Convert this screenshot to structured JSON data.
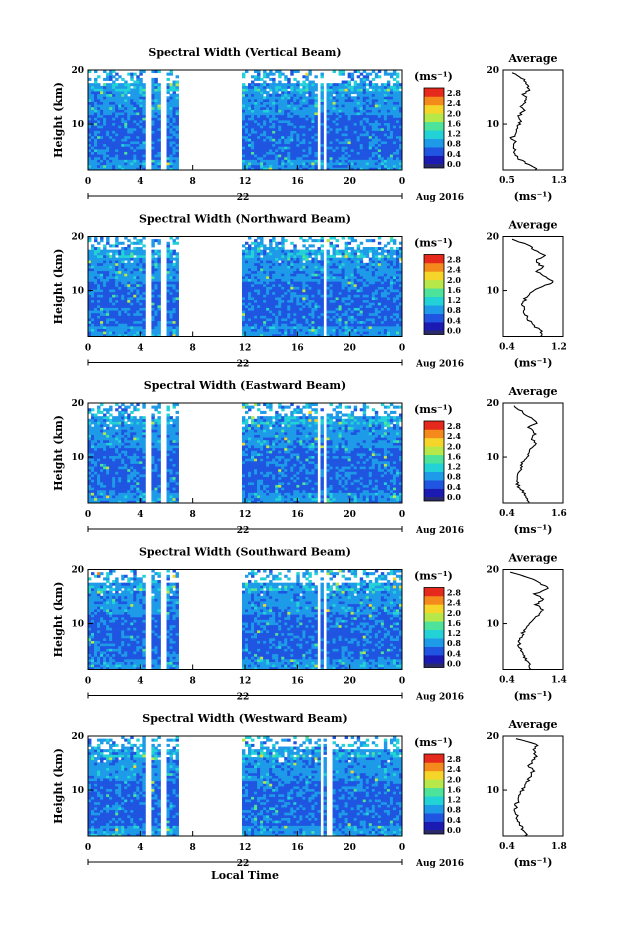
{
  "date_label": "Aug 2016",
  "day_label": "22",
  "xlabel": "Local Time",
  "ylabel": "Height (km)",
  "avg_title": "Average",
  "unit_label": "(ms⁻¹)",
  "colorbar_ticks": [
    "2.8",
    "2.4",
    "2.0",
    "1.6",
    "1.2",
    "0.8",
    "0.4",
    "0.0"
  ],
  "colors": {
    "colormap": [
      "#1b1bb4",
      "#1f55e0",
      "#1e9be8",
      "#23d2d6",
      "#4ee39a",
      "#b7e84a",
      "#f6d52a",
      "#f48a1c",
      "#e6291d"
    ],
    "background": "#ffffff"
  },
  "chart_data": [
    {
      "type": "heatmap",
      "title": "Spectral Width (Vertical Beam)",
      "x": {
        "ticks": [
          "0",
          "4",
          "8",
          "12",
          "16",
          "20",
          "0"
        ],
        "range": [
          0,
          24
        ],
        "unit": "hour"
      },
      "y": {
        "ticks": [
          "20",
          "10"
        ],
        "range": [
          1.5,
          20
        ]
      },
      "data_gaps_hours": [
        [
          4.3,
          4.8
        ],
        [
          5.5,
          5.9
        ],
        [
          7.0,
          11.8
        ],
        [
          17.5,
          17.8
        ],
        [
          18.0,
          18.3
        ]
      ],
      "colorbar": {
        "range": [
          0,
          3.0
        ]
      },
      "average": {
        "title": "Average",
        "x_ticks": [
          "0.5",
          "1.3"
        ],
        "xlim": [
          0.5,
          1.3
        ],
        "ylim": [
          1.5,
          20
        ],
        "y_ticks": [
          "20",
          "10"
        ],
        "profile": [
          [
            1.5,
            0.95
          ],
          [
            2.5,
            0.85
          ],
          [
            3.5,
            0.72
          ],
          [
            4.5,
            0.66
          ],
          [
            5.5,
            0.64
          ],
          [
            6.5,
            0.66
          ],
          [
            7.5,
            0.62
          ],
          [
            8.5,
            0.68
          ],
          [
            9.5,
            0.7
          ],
          [
            10.5,
            0.74
          ],
          [
            11.5,
            0.72
          ],
          [
            12.5,
            0.78
          ],
          [
            13.5,
            0.74
          ],
          [
            14.5,
            0.82
          ],
          [
            15.5,
            0.78
          ],
          [
            16.5,
            0.86
          ],
          [
            17.5,
            0.8
          ],
          [
            18.5,
            0.76
          ],
          [
            19.5,
            0.62
          ]
        ]
      }
    },
    {
      "type": "heatmap",
      "title": "Spectral Width (Northward Beam)",
      "x": {
        "ticks": [
          "0",
          "4",
          "8",
          "12",
          "16",
          "20",
          "0"
        ],
        "range": [
          0,
          24
        ],
        "unit": "hour"
      },
      "y": {
        "ticks": [
          "20",
          "10"
        ],
        "range": [
          1.5,
          20
        ]
      },
      "data_gaps_hours": [
        [
          4.3,
          4.8
        ],
        [
          5.5,
          5.9
        ],
        [
          7.0,
          11.8
        ],
        [
          18.0,
          18.3
        ]
      ],
      "colorbar": {
        "range": [
          0,
          3.0
        ]
      },
      "average": {
        "title": "Average",
        "x_ticks": [
          "0.4",
          "1.2"
        ],
        "xlim": [
          0.4,
          1.2
        ],
        "ylim": [
          1.5,
          20
        ],
        "y_ticks": [
          "20",
          "10"
        ],
        "profile": [
          [
            1.5,
            0.92
          ],
          [
            2.5,
            0.9
          ],
          [
            3.5,
            0.82
          ],
          [
            4.5,
            0.74
          ],
          [
            5.5,
            0.7
          ],
          [
            6.5,
            0.68
          ],
          [
            7.5,
            0.66
          ],
          [
            8.5,
            0.7
          ],
          [
            9.5,
            0.76
          ],
          [
            10.5,
            0.86
          ],
          [
            11.5,
            1.08
          ],
          [
            12.5,
            0.98
          ],
          [
            13.5,
            0.86
          ],
          [
            14.5,
            0.92
          ],
          [
            15.5,
            0.84
          ],
          [
            16.5,
            0.96
          ],
          [
            17.5,
            0.82
          ],
          [
            18.5,
            0.74
          ],
          [
            19.5,
            0.52
          ]
        ]
      }
    },
    {
      "type": "heatmap",
      "title": "Spectral Width (Eastward Beam)",
      "x": {
        "ticks": [
          "0",
          "4",
          "8",
          "12",
          "16",
          "20",
          "0"
        ],
        "range": [
          0,
          24
        ],
        "unit": "hour"
      },
      "y": {
        "ticks": [
          "20",
          "10"
        ],
        "range": [
          1.5,
          20
        ]
      },
      "data_gaps_hours": [
        [
          4.3,
          4.8
        ],
        [
          5.5,
          5.9
        ],
        [
          7.0,
          11.8
        ],
        [
          17.5,
          17.8
        ],
        [
          18.0,
          18.3
        ]
      ],
      "colorbar": {
        "range": [
          0,
          3.0
        ]
      },
      "average": {
        "title": "Average",
        "x_ticks": [
          "0.4",
          "1.6"
        ],
        "xlim": [
          0.4,
          1.6
        ],
        "ylim": [
          1.5,
          20
        ],
        "y_ticks": [
          "20",
          "10"
        ],
        "profile": [
          [
            1.5,
            0.92
          ],
          [
            2.5,
            0.86
          ],
          [
            3.5,
            0.8
          ],
          [
            4.5,
            0.72
          ],
          [
            5.5,
            0.68
          ],
          [
            6.5,
            0.66
          ],
          [
            7.5,
            0.74
          ],
          [
            8.5,
            0.78
          ],
          [
            9.5,
            0.82
          ],
          [
            10.5,
            0.9
          ],
          [
            11.5,
            0.96
          ],
          [
            12.5,
            1.08
          ],
          [
            13.5,
            0.98
          ],
          [
            14.5,
            1.04
          ],
          [
            15.5,
            0.9
          ],
          [
            16.5,
            1.1
          ],
          [
            17.5,
            0.92
          ],
          [
            18.5,
            0.78
          ],
          [
            19.5,
            0.62
          ]
        ]
      }
    },
    {
      "type": "heatmap",
      "title": "Spectral Width (Southward Beam)",
      "x": {
        "ticks": [
          "0",
          "4",
          "8",
          "12",
          "16",
          "20",
          "0"
        ],
        "range": [
          0,
          24
        ],
        "unit": "hour"
      },
      "y": {
        "ticks": [
          "20",
          "10"
        ],
        "range": [
          1.5,
          20
        ]
      },
      "data_gaps_hours": [
        [
          4.3,
          4.8
        ],
        [
          5.5,
          5.9
        ],
        [
          7.0,
          11.8
        ],
        [
          17.5,
          17.8
        ],
        [
          18.0,
          18.3
        ]
      ],
      "colorbar": {
        "range": [
          0,
          3.0
        ]
      },
      "average": {
        "title": "Average",
        "x_ticks": [
          "0.4",
          "1.4"
        ],
        "xlim": [
          0.4,
          1.4
        ],
        "ylim": [
          1.5,
          20
        ],
        "y_ticks": [
          "20",
          "10"
        ],
        "profile": [
          [
            1.5,
            0.88
          ],
          [
            2.5,
            0.84
          ],
          [
            3.5,
            0.78
          ],
          [
            4.5,
            0.72
          ],
          [
            5.5,
            0.68
          ],
          [
            6.5,
            0.66
          ],
          [
            7.5,
            0.7
          ],
          [
            8.5,
            0.74
          ],
          [
            9.5,
            0.82
          ],
          [
            10.5,
            0.9
          ],
          [
            11.5,
            0.98
          ],
          [
            12.5,
            1.06
          ],
          [
            13.5,
            0.96
          ],
          [
            14.5,
            1.08
          ],
          [
            15.5,
            0.94
          ],
          [
            16.5,
            1.18
          ],
          [
            17.5,
            1.0
          ],
          [
            18.5,
            0.84
          ],
          [
            19.5,
            0.52
          ]
        ]
      }
    },
    {
      "type": "heatmap",
      "title": "Spectral Width (Westward Beam)",
      "x": {
        "ticks": [
          "0",
          "4",
          "8",
          "12",
          "16",
          "20",
          "0"
        ],
        "range": [
          0,
          24
        ],
        "unit": "hour"
      },
      "y": {
        "ticks": [
          "20",
          "10"
        ],
        "range": [
          1.5,
          20
        ]
      },
      "data_gaps_hours": [
        [
          4.3,
          4.8
        ],
        [
          5.5,
          5.9
        ],
        [
          7.0,
          11.8
        ],
        [
          17.8,
          18.1
        ],
        [
          18.3,
          18.6
        ]
      ],
      "colorbar": {
        "range": [
          0,
          3.0
        ]
      },
      "average": {
        "title": "Average",
        "x_ticks": [
          "0.4",
          "1.8"
        ],
        "xlim": [
          0.4,
          1.8
        ],
        "ylim": [
          1.5,
          20
        ],
        "y_ticks": [
          "20",
          "10"
        ],
        "profile": [
          [
            1.5,
            0.94
          ],
          [
            2.5,
            0.88
          ],
          [
            3.5,
            0.82
          ],
          [
            4.5,
            0.74
          ],
          [
            5.5,
            0.7
          ],
          [
            6.5,
            0.68
          ],
          [
            7.5,
            0.72
          ],
          [
            8.5,
            0.76
          ],
          [
            9.5,
            0.82
          ],
          [
            10.5,
            0.9
          ],
          [
            11.5,
            0.98
          ],
          [
            12.5,
            1.04
          ],
          [
            13.5,
            1.1
          ],
          [
            14.5,
            1.0
          ],
          [
            15.5,
            1.12
          ],
          [
            16.5,
            1.18
          ],
          [
            17.5,
            1.1
          ],
          [
            18.5,
            1.2
          ],
          [
            19.5,
            0.7
          ]
        ]
      }
    }
  ]
}
